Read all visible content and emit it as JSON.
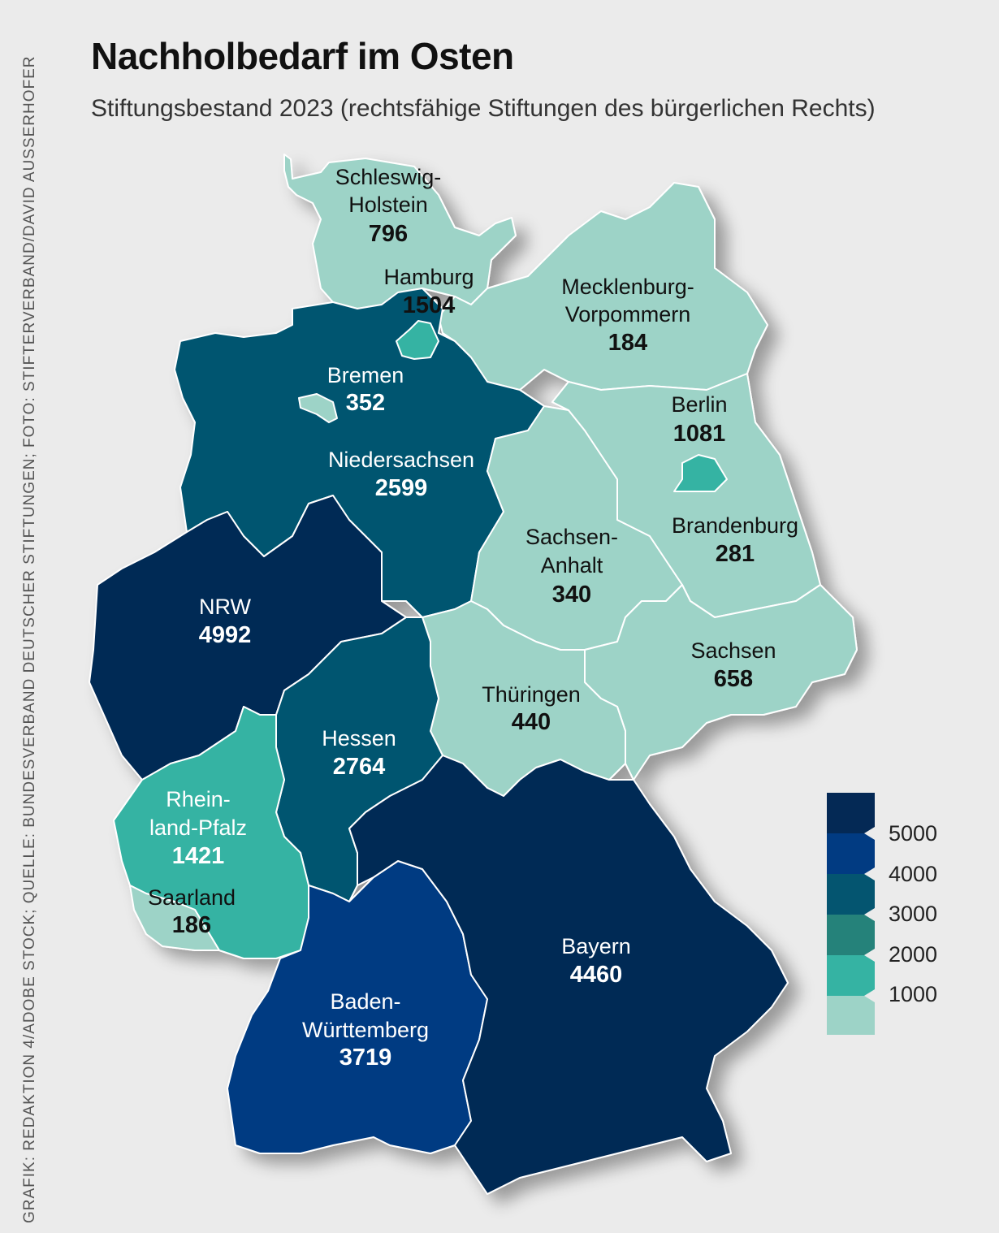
{
  "title": "Nachholbedarf im Osten",
  "subtitle": "Stiftungsbestand 2023 (rechtsfähige Stiftungen des bürgerlichen Rechts)",
  "credit": "GRAFIK: REDAKTION 4/ADOBE STOCK; QUELLE: BUNDESVERBAND DEUTSCHER STIFTUNGEN; FOTO: STIFTERVERBAND/DAVID AUSSERHOFER",
  "colors": {
    "c0": "#9dd3c7",
    "c1000": "#35b3a3",
    "c2000": "#25827a",
    "c3000": "#045570",
    "c4000": "#013b82",
    "c5000": "#042955",
    "background": "#ebebeb"
  },
  "states": {
    "sh": {
      "name": "Schleswig-Holstein",
      "line1": "Schleswig-",
      "line2": "Holstein",
      "value": "796"
    },
    "hh": {
      "name": "Hamburg",
      "value": "1504"
    },
    "mv": {
      "name": "Mecklenburg-Vorpommern",
      "line1": "Mecklenburg-",
      "line2": "Vorpommern",
      "value": "184"
    },
    "hb": {
      "name": "Bremen",
      "value": "352"
    },
    "ni": {
      "name": "Niedersachsen",
      "value": "2599"
    },
    "be": {
      "name": "Berlin",
      "value": "1081"
    },
    "bb": {
      "name": "Brandenburg",
      "value": "281"
    },
    "st": {
      "name": "Sachsen-Anhalt",
      "line1": "Sachsen-",
      "line2": "Anhalt",
      "value": "340"
    },
    "nw": {
      "name": "NRW",
      "value": "4992"
    },
    "sn": {
      "name": "Sachsen",
      "value": "658"
    },
    "th": {
      "name": "Thüringen",
      "value": "440"
    },
    "he": {
      "name": "Hessen",
      "value": "2764"
    },
    "rp": {
      "name": "Rheinland-Pfalz",
      "line1": "Rhein-",
      "line2": "land-Pfalz",
      "value": "1421"
    },
    "sl": {
      "name": "Saarland",
      "value": "186"
    },
    "by": {
      "name": "Bayern",
      "value": "4460"
    },
    "bw": {
      "name": "Baden-Württemberg",
      "line1": "Baden-",
      "line2": "Württemberg",
      "value": "3719"
    }
  },
  "legend": {
    "ticks": [
      "5000",
      "4000",
      "3000",
      "2000",
      "1000"
    ]
  }
}
